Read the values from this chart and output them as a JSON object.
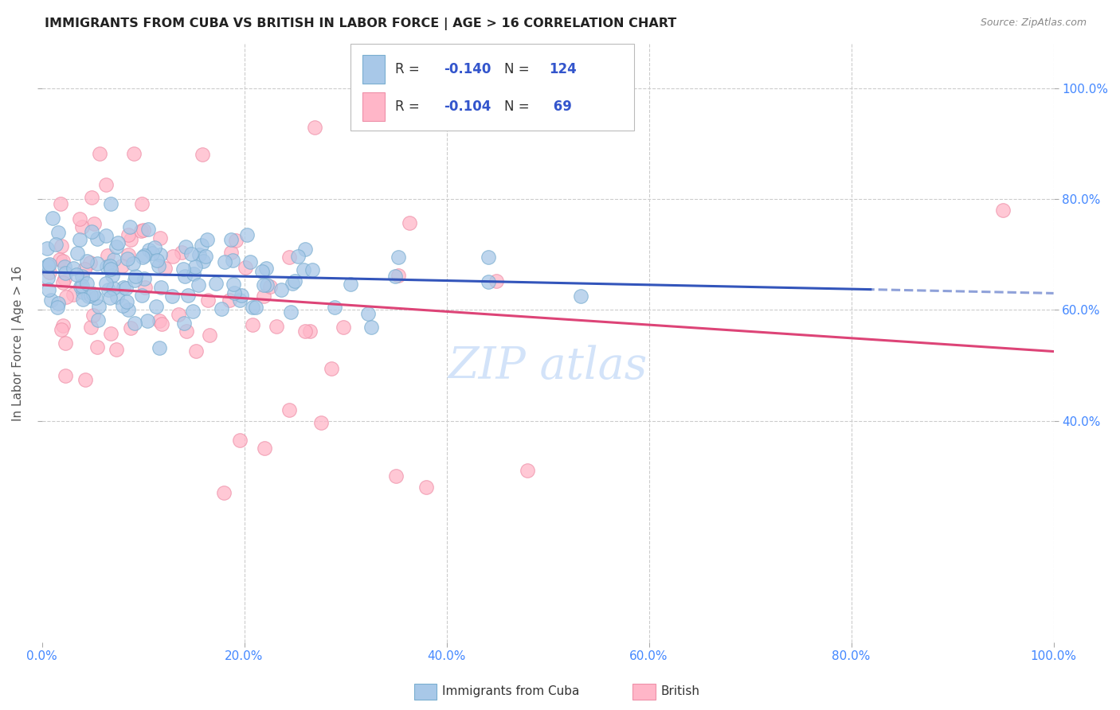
{
  "title": "IMMIGRANTS FROM CUBA VS BRITISH IN LABOR FORCE | AGE > 16 CORRELATION CHART",
  "source": "Source: ZipAtlas.com",
  "ylabel": "In Labor Force | Age > 16",
  "xlim": [
    0.0,
    1.0
  ],
  "ylim": [
    0.0,
    1.08
  ],
  "ytick_vals": [
    0.4,
    0.6,
    0.8,
    1.0
  ],
  "ytick_labels": [
    "40.0%",
    "60.0%",
    "80.0%",
    "100.0%"
  ],
  "xtick_vals": [
    0.0,
    0.2,
    0.4,
    0.6,
    0.8,
    1.0
  ],
  "xtick_labels": [
    "0.0%",
    "20.0%",
    "40.0%",
    "60.0%",
    "80.0%",
    "100.0%"
  ],
  "blue_color": "#a8c8e8",
  "blue_edge": "#7aaed0",
  "pink_color": "#ffb6c8",
  "pink_edge": "#ee90a8",
  "trend_blue": "#3355bb",
  "trend_pink": "#dd4477",
  "background": "#ffffff",
  "grid_color": "#cccccc",
  "tick_color": "#4488ff",
  "title_color": "#222222",
  "source_color": "#888888",
  "ylabel_color": "#555555",
  "watermark_color": "#c8ddf8",
  "R_blue": -0.14,
  "N_blue": 124,
  "R_pink": -0.104,
  "N_pink": 69,
  "legend_text_color": "#333333",
  "legend_value_color": "#3355cc"
}
